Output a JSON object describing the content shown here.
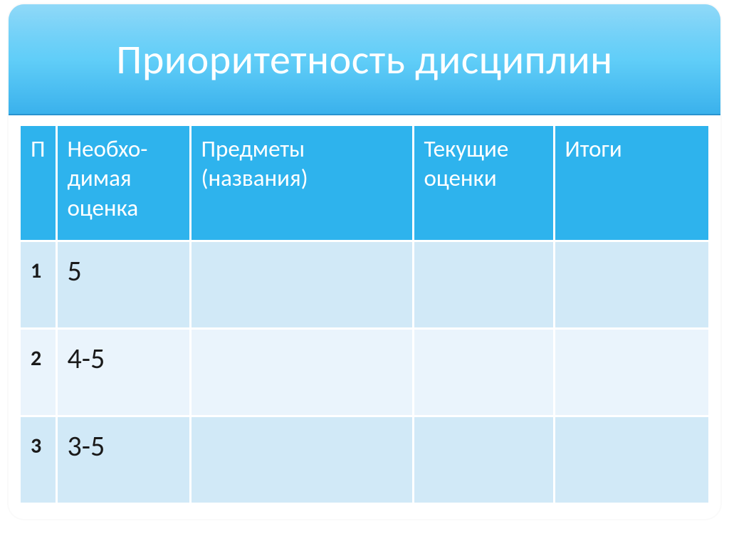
{
  "title": "Приоритетность дисциплин",
  "table": {
    "columns": {
      "p": "П",
      "needed_grade": "Необхо-\nдимая\nоценка",
      "subjects": "Предметы\n(названия)",
      "current_grades": "Текущие\nоценки",
      "results": "Итоги"
    },
    "rows": [
      {
        "num": "1",
        "needed": "5",
        "subjects": "",
        "current": "",
        "results": ""
      },
      {
        "num": "2",
        "needed": "4-5",
        "subjects": "",
        "current": "",
        "results": ""
      },
      {
        "num": "3",
        "needed": "3-5",
        "subjects": "",
        "current": "",
        "results": ""
      }
    ]
  },
  "style": {
    "title_gradient_top": "#47c0f4",
    "title_gradient_mid": "#61cef8",
    "title_gradient_bot": "#3ab1ec",
    "header_bg": "#2eb3ed",
    "row_odd_bg": "#d1e9f7",
    "row_even_bg": "#eaf4fc",
    "title_color": "#ffffff",
    "header_text_color": "#ffffff",
    "cell_text_color": "#1a1a1a",
    "title_fontsize": 58,
    "header_fontsize": 33,
    "cell_fontsize": 40,
    "rownum_fontsize": 30,
    "border_radius": 22
  }
}
